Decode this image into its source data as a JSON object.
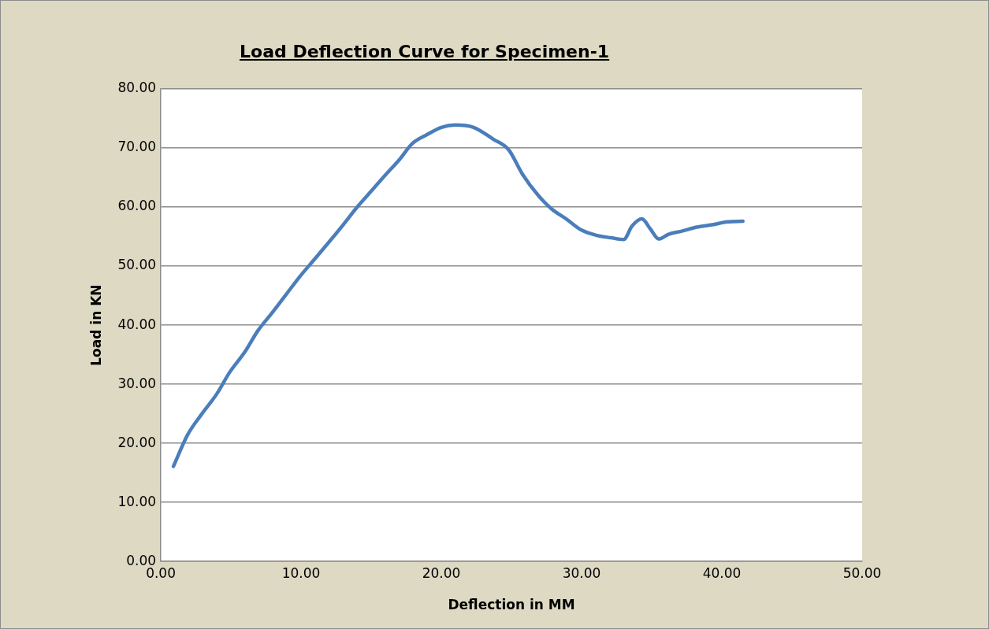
{
  "chart_data": {
    "type": "line",
    "title": "Load Deflection Curve for Specimen-1",
    "xlabel": "Deflection in MM",
    "ylabel": "Load in KN",
    "x": [
      0.9,
      1.9,
      2.9,
      4.0,
      4.9,
      6.0,
      6.9,
      7.9,
      8.9,
      9.9,
      10.9,
      12.0,
      13.0,
      14.0,
      15.0,
      16.0,
      17.0,
      17.9,
      19.0,
      20.0,
      21.0,
      22.3,
      23.7,
      24.8,
      25.8,
      26.9,
      27.9,
      28.9,
      30.0,
      31.1,
      32.1,
      33.0,
      33.6,
      34.3,
      34.9,
      35.5,
      36.2,
      37.1,
      38.2,
      39.3,
      40.4,
      41.5
    ],
    "series": [
      {
        "color": "#4a7ebb",
        "values": [
          16.1,
          21.4,
          24.9,
          28.4,
          32.0,
          35.5,
          39.0,
          42.0,
          45.1,
          48.2,
          51.0,
          54.1,
          57.0,
          60.0,
          62.7,
          65.4,
          68.0,
          70.7,
          72.3,
          73.5,
          73.9,
          73.5,
          71.5,
          69.7,
          65.5,
          62.0,
          59.6,
          58.0,
          56.1,
          55.2,
          54.8,
          54.5,
          56.8,
          58.0,
          56.3,
          54.6,
          55.4,
          55.9,
          56.6,
          57.0,
          57.5,
          57.6
        ]
      }
    ],
    "xlim": [
      0,
      50
    ],
    "xticks": [
      {
        "value": 0,
        "label": "0.00"
      },
      {
        "value": 10,
        "label": "10.00"
      },
      {
        "value": 20,
        "label": "20.00"
      },
      {
        "value": 30,
        "label": "30.00"
      },
      {
        "value": 40,
        "label": "40.00"
      },
      {
        "value": 50,
        "label": "50.00"
      }
    ],
    "ylim": [
      0,
      80
    ],
    "yticks": [
      {
        "value": 0,
        "label": "0.00"
      },
      {
        "value": 10,
        "label": "10.00"
      },
      {
        "value": 20,
        "label": "20.00"
      },
      {
        "value": 30,
        "label": "30.00"
      },
      {
        "value": 40,
        "label": "40.00"
      },
      {
        "value": 50,
        "label": "50.00"
      },
      {
        "value": 60,
        "label": "60.00"
      },
      {
        "value": 70,
        "label": "70.00"
      },
      {
        "value": 80,
        "label": "80.00"
      }
    ],
    "grid": "y",
    "legend": false,
    "marker": "none",
    "line_style": "solid"
  }
}
